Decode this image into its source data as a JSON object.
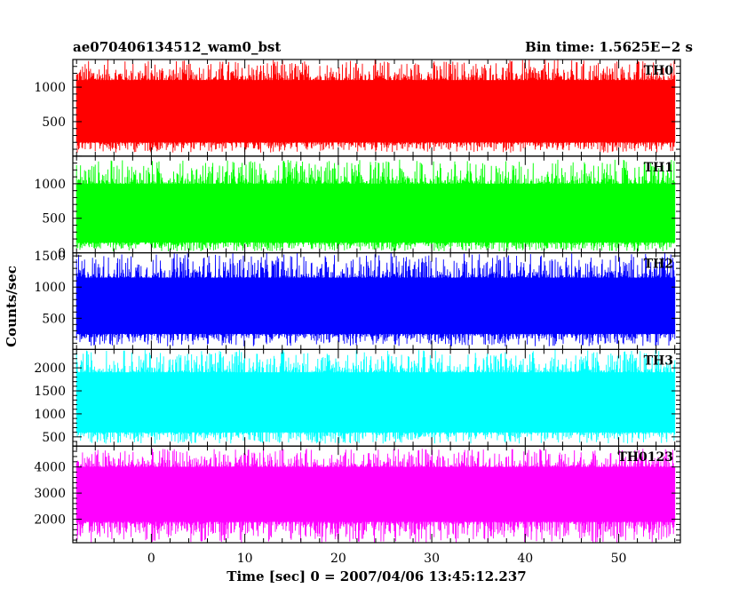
{
  "header": {
    "title": "ae070406134512_wam0_bst",
    "bin_time": "Bin time: 1.5625E−2 s"
  },
  "axes": {
    "ylabel": "Counts/sec",
    "xlabel": "Time [sec] 0 = 2007/04/06 13:45:12.237"
  },
  "chart_data": [
    {
      "type": "line",
      "name": "TH0",
      "color": "#ff0000",
      "xlim": [
        -8.4,
        56.6
      ],
      "ylim": [
        0,
        1400
      ],
      "yticks": [
        500,
        1000
      ],
      "x_range_data": [
        -8,
        56
      ],
      "mean": 650,
      "band": [
        200,
        1100
      ],
      "spikes_max": 1400,
      "dips_min": 50
    },
    {
      "type": "line",
      "name": "TH1",
      "color": "#00ff00",
      "xlim": [
        -8.4,
        56.6
      ],
      "ylim": [
        0,
        1400
      ],
      "yticks": [
        0,
        500,
        1000
      ],
      "x_range_data": [
        -8,
        56
      ],
      "mean": 550,
      "band": [
        150,
        1000
      ],
      "spikes_max": 1350,
      "dips_min": 20
    },
    {
      "type": "line",
      "name": "TH2",
      "color": "#0000ff",
      "xlim": [
        -8.4,
        56.6
      ],
      "ylim": [
        0,
        1550
      ],
      "yticks": [
        500,
        1000,
        1500
      ],
      "x_range_data": [
        -8,
        56
      ],
      "mean": 700,
      "band": [
        250,
        1150
      ],
      "spikes_max": 1550,
      "dips_min": 50
    },
    {
      "type": "line",
      "name": "TH3",
      "color": "#00ffff",
      "xlim": [
        -8.4,
        56.6
      ],
      "ylim": [
        300,
        2400
      ],
      "yticks": [
        500,
        1000,
        1500,
        2000
      ],
      "x_range_data": [
        -8,
        56
      ],
      "mean": 1200,
      "band": [
        600,
        1900
      ],
      "spikes_max": 2400,
      "dips_min": 350
    },
    {
      "type": "line",
      "name": "TH0123",
      "color": "#ff00ff",
      "xlim": [
        -8.4,
        56.6
      ],
      "ylim": [
        1100,
        4800
      ],
      "yticks": [
        2000,
        3000,
        4000
      ],
      "x_range_data": [
        -8,
        56
      ],
      "mean": 3000,
      "band": [
        1900,
        4000
      ],
      "spikes_max": 4700,
      "dips_min": 1100
    }
  ],
  "xticks": [
    0,
    10,
    20,
    30,
    40,
    50
  ]
}
